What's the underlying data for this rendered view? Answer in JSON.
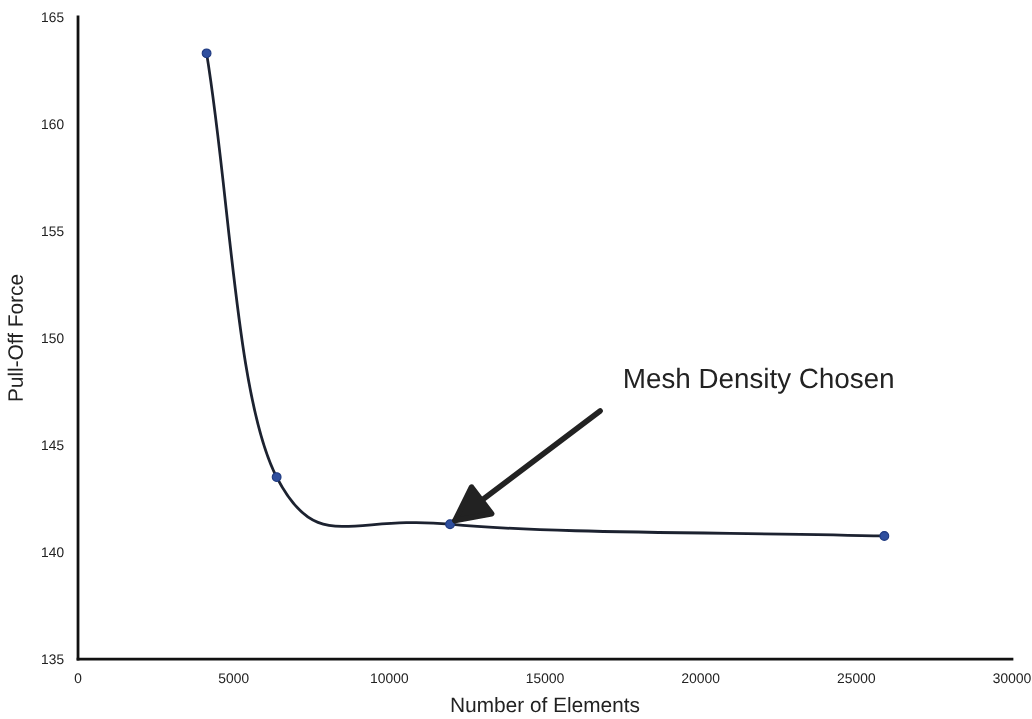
{
  "chart_data": {
    "type": "line",
    "xlabel": "Number of Elements",
    "ylabel": "Pull-Off Force",
    "x": [
      4130,
      6380,
      11950,
      25900
    ],
    "series": [
      {
        "color": "#1c2230",
        "colors": [
          "#2f4f9e",
          "#2f4f9e",
          "#2f4f9e",
          "#2f4f9e"
        ],
        "values": [
          163.3,
          143.5,
          141.3,
          140.75
        ]
      }
    ],
    "marker": "circle",
    "line_style": "solid",
    "xlim": [
      0,
      30000
    ],
    "xticks": [
      0,
      5000,
      10000,
      15000,
      20000,
      25000,
      30000
    ],
    "ylim": [
      135,
      165
    ],
    "yticks": [
      135,
      140,
      145,
      150,
      155,
      160,
      165
    ],
    "grid": false,
    "annotations": [
      {
        "text": "Mesh Density Chosen",
        "x": 11950,
        "y": 141.3
      }
    ]
  }
}
